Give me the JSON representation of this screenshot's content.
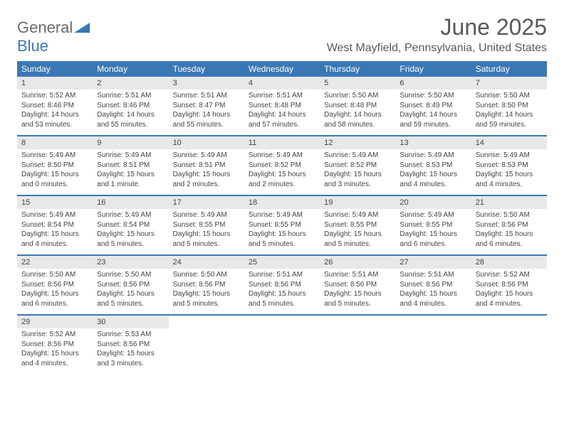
{
  "logo": {
    "part1": "General",
    "part2": "Blue"
  },
  "title": "June 2025",
  "location": "West Mayfield, Pennsylvania, United States",
  "colors": {
    "header_bg": "#3a78b5",
    "header_text": "#ffffff",
    "daynum_bg": "#e8e8e8",
    "border": "#3a78b5",
    "text": "#444444",
    "title_text": "#595959"
  },
  "weekdays": [
    "Sunday",
    "Monday",
    "Tuesday",
    "Wednesday",
    "Thursday",
    "Friday",
    "Saturday"
  ],
  "weeks": [
    [
      {
        "n": "1",
        "sr": "5:52 AM",
        "ss": "8:46 PM",
        "dl": "14 hours and 53 minutes."
      },
      {
        "n": "2",
        "sr": "5:51 AM",
        "ss": "8:46 PM",
        "dl": "14 hours and 55 minutes."
      },
      {
        "n": "3",
        "sr": "5:51 AM",
        "ss": "8:47 PM",
        "dl": "14 hours and 55 minutes."
      },
      {
        "n": "4",
        "sr": "5:51 AM",
        "ss": "8:48 PM",
        "dl": "14 hours and 57 minutes."
      },
      {
        "n": "5",
        "sr": "5:50 AM",
        "ss": "8:48 PM",
        "dl": "14 hours and 58 minutes."
      },
      {
        "n": "6",
        "sr": "5:50 AM",
        "ss": "8:49 PM",
        "dl": "14 hours and 59 minutes."
      },
      {
        "n": "7",
        "sr": "5:50 AM",
        "ss": "8:50 PM",
        "dl": "14 hours and 59 minutes."
      }
    ],
    [
      {
        "n": "8",
        "sr": "5:49 AM",
        "ss": "8:50 PM",
        "dl": "15 hours and 0 minutes."
      },
      {
        "n": "9",
        "sr": "5:49 AM",
        "ss": "8:51 PM",
        "dl": "15 hours and 1 minute."
      },
      {
        "n": "10",
        "sr": "5:49 AM",
        "ss": "8:51 PM",
        "dl": "15 hours and 2 minutes."
      },
      {
        "n": "11",
        "sr": "5:49 AM",
        "ss": "8:52 PM",
        "dl": "15 hours and 2 minutes."
      },
      {
        "n": "12",
        "sr": "5:49 AM",
        "ss": "8:52 PM",
        "dl": "15 hours and 3 minutes."
      },
      {
        "n": "13",
        "sr": "5:49 AM",
        "ss": "8:53 PM",
        "dl": "15 hours and 4 minutes."
      },
      {
        "n": "14",
        "sr": "5:49 AM",
        "ss": "8:53 PM",
        "dl": "15 hours and 4 minutes."
      }
    ],
    [
      {
        "n": "15",
        "sr": "5:49 AM",
        "ss": "8:54 PM",
        "dl": "15 hours and 4 minutes."
      },
      {
        "n": "16",
        "sr": "5:49 AM",
        "ss": "8:54 PM",
        "dl": "15 hours and 5 minutes."
      },
      {
        "n": "17",
        "sr": "5:49 AM",
        "ss": "8:55 PM",
        "dl": "15 hours and 5 minutes."
      },
      {
        "n": "18",
        "sr": "5:49 AM",
        "ss": "8:55 PM",
        "dl": "15 hours and 5 minutes."
      },
      {
        "n": "19",
        "sr": "5:49 AM",
        "ss": "8:55 PM",
        "dl": "15 hours and 5 minutes."
      },
      {
        "n": "20",
        "sr": "5:49 AM",
        "ss": "8:55 PM",
        "dl": "15 hours and 6 minutes."
      },
      {
        "n": "21",
        "sr": "5:50 AM",
        "ss": "8:56 PM",
        "dl": "15 hours and 6 minutes."
      }
    ],
    [
      {
        "n": "22",
        "sr": "5:50 AM",
        "ss": "8:56 PM",
        "dl": "15 hours and 6 minutes."
      },
      {
        "n": "23",
        "sr": "5:50 AM",
        "ss": "8:56 PM",
        "dl": "15 hours and 5 minutes."
      },
      {
        "n": "24",
        "sr": "5:50 AM",
        "ss": "8:56 PM",
        "dl": "15 hours and 5 minutes."
      },
      {
        "n": "25",
        "sr": "5:51 AM",
        "ss": "8:56 PM",
        "dl": "15 hours and 5 minutes."
      },
      {
        "n": "26",
        "sr": "5:51 AM",
        "ss": "8:56 PM",
        "dl": "15 hours and 5 minutes."
      },
      {
        "n": "27",
        "sr": "5:51 AM",
        "ss": "8:56 PM",
        "dl": "15 hours and 4 minutes."
      },
      {
        "n": "28",
        "sr": "5:52 AM",
        "ss": "8:56 PM",
        "dl": "15 hours and 4 minutes."
      }
    ],
    [
      {
        "n": "29",
        "sr": "5:52 AM",
        "ss": "8:56 PM",
        "dl": "15 hours and 4 minutes."
      },
      {
        "n": "30",
        "sr": "5:53 AM",
        "ss": "8:56 PM",
        "dl": "15 hours and 3 minutes."
      },
      null,
      null,
      null,
      null,
      null
    ]
  ],
  "labels": {
    "sunrise": "Sunrise:",
    "sunset": "Sunset:",
    "daylight": "Daylight:"
  }
}
